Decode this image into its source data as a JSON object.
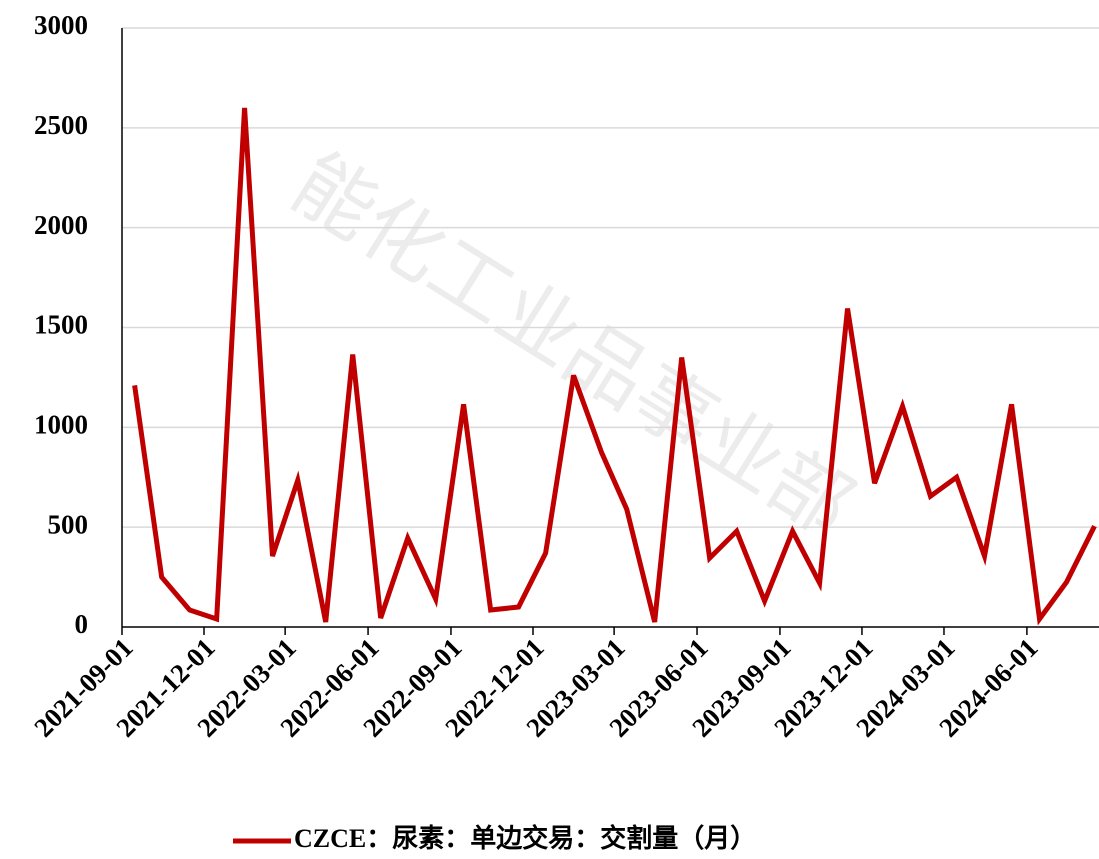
{
  "chart_data": {
    "type": "line",
    "watermark": "能化工业品事业部",
    "x": [
      "2021-09",
      "2021-10",
      "2021-11",
      "2021-12",
      "2022-01",
      "2022-02",
      "2022-03",
      "2022-04",
      "2022-05",
      "2022-06",
      "2022-07",
      "2022-08",
      "2022-09",
      "2022-10",
      "2022-11",
      "2022-12",
      "2023-01",
      "2023-02",
      "2023-03",
      "2023-04",
      "2023-05",
      "2023-06",
      "2023-07",
      "2023-08",
      "2023-09",
      "2023-10",
      "2023-11",
      "2023-12",
      "2024-01",
      "2024-02",
      "2024-03",
      "2024-04",
      "2024-05",
      "2024-06",
      "2024-07",
      "2024-08"
    ],
    "series": [
      {
        "name": "CZCE：尿素：单边交易：交割量（月）",
        "color": "#c00000",
        "values": [
          1210,
          250,
          85,
          40,
          2600,
          355,
          735,
          25,
          1365,
          45,
          445,
          140,
          1115,
          85,
          100,
          370,
          1260,
          875,
          590,
          25,
          1350,
          345,
          480,
          130,
          480,
          220,
          1595,
          720,
          1105,
          655,
          750,
          355,
          1115,
          40,
          225,
          505
        ]
      }
    ],
    "xlim": [
      "2021-09-01",
      "2024-08-20"
    ],
    "xticks": [
      "2021-09-01",
      "2021-12-01",
      "2022-03-01",
      "2022-06-01",
      "2022-09-01",
      "2022-12-01",
      "2023-03-01",
      "2023-06-01",
      "2023-09-01",
      "2023-12-01",
      "2024-03-01",
      "2024-06-01"
    ],
    "ylim": [
      0,
      3000
    ],
    "yticks": [
      0,
      500,
      1000,
      1500,
      2000,
      2500,
      3000
    ],
    "grid": true,
    "legend": "bottom"
  }
}
